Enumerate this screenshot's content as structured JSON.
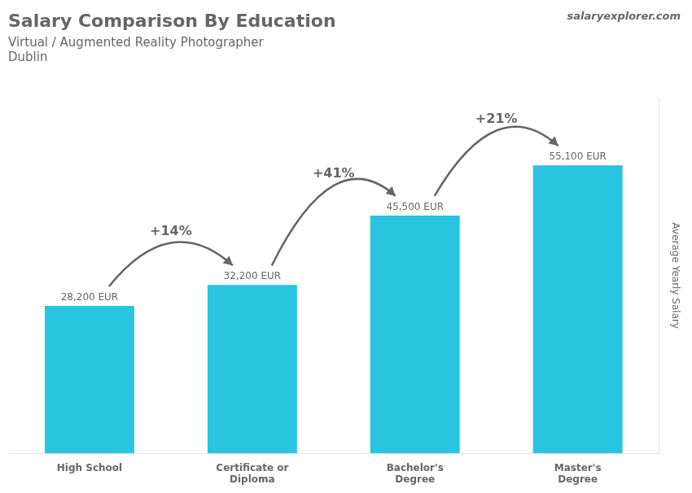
{
  "chart_data": {
    "type": "bar",
    "title": "Salary Comparison By Education",
    "subtitle": [
      "Virtual / Augmented Reality Photographer",
      "Dublin"
    ],
    "source": "salaryexplorer.com",
    "categories": [
      "High School",
      "Certificate or\nDiploma",
      "Bachelor's\nDegree",
      "Master's\nDegree"
    ],
    "values": [
      28200,
      32200,
      45500,
      55100
    ],
    "value_labels": [
      "28,200 EUR",
      "32,200 EUR",
      "45,500 EUR",
      "55,100 EUR"
    ],
    "data_labels": true,
    "color": "#29c4e0",
    "ylabel": "Average Yearly Salary",
    "ylim": [
      0,
      68000
    ],
    "grid": false,
    "tick_labels": "x",
    "annotations": [
      {
        "from": "High School",
        "to": "Certificate or\nDiploma",
        "text": "+14%"
      },
      {
        "from": "Certificate or\nDiploma",
        "to": "Bachelor's\nDegree",
        "text": "+41%"
      },
      {
        "from": "Bachelor's\nDegree",
        "to": "Master's\nDegree",
        "text": "+21%"
      }
    ]
  }
}
